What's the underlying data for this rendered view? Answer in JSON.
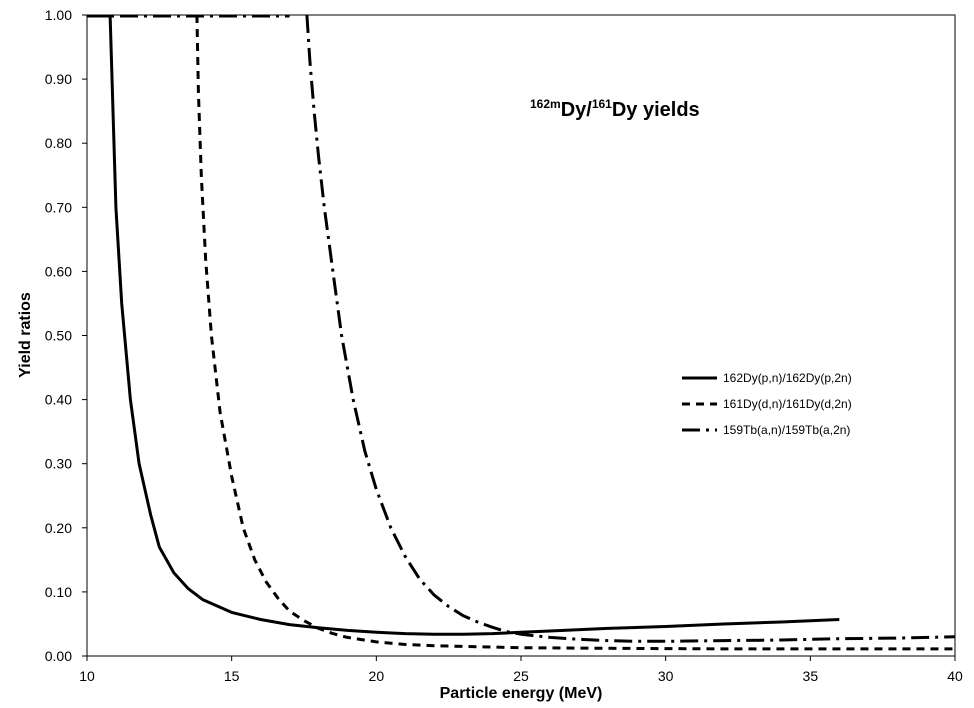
{
  "chart_data": {
    "type": "line",
    "title": {
      "part1_sup": "162m",
      "part2_base": "Dy/",
      "part3_sup": "161",
      "part4_base": "Dy yields"
    },
    "xlabel": "Particle energy (MeV)",
    "ylabel": "Yield ratios",
    "xlim": [
      10,
      40
    ],
    "ylim": [
      0,
      1
    ],
    "x_ticks": [
      "10",
      "15",
      "20",
      "25",
      "30",
      "35",
      "40"
    ],
    "y_ticks": [
      "0.00",
      "0.10",
      "0.20",
      "0.30",
      "0.40",
      "0.50",
      "0.60",
      "0.70",
      "0.80",
      "0.90",
      "1.00"
    ],
    "grid": false,
    "legend_position": "right",
    "series": [
      {
        "name": "162Dy(p,n)/162Dy(p,2n)",
        "dash": "solid",
        "points": [
          [
            10.8,
            1.0
          ],
          [
            10.9,
            0.85
          ],
          [
            11.0,
            0.7
          ],
          [
            11.2,
            0.55
          ],
          [
            11.5,
            0.4
          ],
          [
            11.8,
            0.3
          ],
          [
            12.2,
            0.22
          ],
          [
            12.5,
            0.17
          ],
          [
            13.0,
            0.13
          ],
          [
            13.5,
            0.105
          ],
          [
            14.0,
            0.088
          ],
          [
            15.0,
            0.068
          ],
          [
            16.0,
            0.057
          ],
          [
            17.0,
            0.049
          ],
          [
            18.0,
            0.044
          ],
          [
            19.0,
            0.04
          ],
          [
            20.0,
            0.037
          ],
          [
            21.0,
            0.035
          ],
          [
            22.0,
            0.034
          ],
          [
            23.0,
            0.034
          ],
          [
            24.0,
            0.035
          ],
          [
            25.0,
            0.037
          ],
          [
            26.0,
            0.039
          ],
          [
            28.0,
            0.043
          ],
          [
            30.0,
            0.046
          ],
          [
            32.0,
            0.05
          ],
          [
            34.0,
            0.053
          ],
          [
            36.0,
            0.057
          ]
        ]
      },
      {
        "name": "161Dy(d,n)/161Dy(d,2n)",
        "dash": "dashed",
        "points": [
          [
            13.8,
            1.0
          ],
          [
            13.85,
            0.88
          ],
          [
            13.95,
            0.75
          ],
          [
            14.1,
            0.62
          ],
          [
            14.3,
            0.5
          ],
          [
            14.6,
            0.38
          ],
          [
            15.0,
            0.28
          ],
          [
            15.4,
            0.2
          ],
          [
            15.8,
            0.15
          ],
          [
            16.2,
            0.115
          ],
          [
            16.6,
            0.09
          ],
          [
            17.0,
            0.07
          ],
          [
            17.5,
            0.055
          ],
          [
            18.0,
            0.043
          ],
          [
            18.5,
            0.035
          ],
          [
            19.0,
            0.029
          ],
          [
            20.0,
            0.022
          ],
          [
            21.0,
            0.018
          ],
          [
            22.0,
            0.016
          ],
          [
            23.0,
            0.015
          ],
          [
            25.0,
            0.013
          ],
          [
            28.0,
            0.012
          ],
          [
            32.0,
            0.011
          ],
          [
            36.0,
            0.011
          ],
          [
            40.0,
            0.011
          ]
        ]
      },
      {
        "name": "159Tb(a,n)/159Tb(a,2n)",
        "dash": "dashdot",
        "points": [
          [
            17.6,
            1.0
          ],
          [
            17.7,
            0.93
          ],
          [
            17.85,
            0.85
          ],
          [
            18.0,
            0.78
          ],
          [
            18.2,
            0.7
          ],
          [
            18.5,
            0.6
          ],
          [
            18.8,
            0.5
          ],
          [
            19.2,
            0.4
          ],
          [
            19.6,
            0.32
          ],
          [
            20.0,
            0.26
          ],
          [
            20.5,
            0.2
          ],
          [
            21.0,
            0.155
          ],
          [
            21.5,
            0.12
          ],
          [
            22.0,
            0.095
          ],
          [
            22.5,
            0.077
          ],
          [
            23.0,
            0.063
          ],
          [
            23.5,
            0.053
          ],
          [
            24.0,
            0.045
          ],
          [
            24.5,
            0.038
          ],
          [
            25.0,
            0.034
          ],
          [
            26.0,
            0.029
          ],
          [
            27.0,
            0.026
          ],
          [
            28.0,
            0.024
          ],
          [
            29.0,
            0.023
          ],
          [
            30.0,
            0.023
          ],
          [
            32.0,
            0.024
          ],
          [
            34.0,
            0.025
          ],
          [
            36.0,
            0.027
          ],
          [
            38.0,
            0.028
          ],
          [
            40.0,
            0.03
          ]
        ]
      }
    ],
    "flat_segments": [
      {
        "series": 0,
        "x": [
          10.0,
          10.8
        ],
        "y": 1.0
      },
      {
        "series": 2,
        "x": [
          10.0,
          17.0
        ],
        "y": 1.0
      }
    ]
  }
}
